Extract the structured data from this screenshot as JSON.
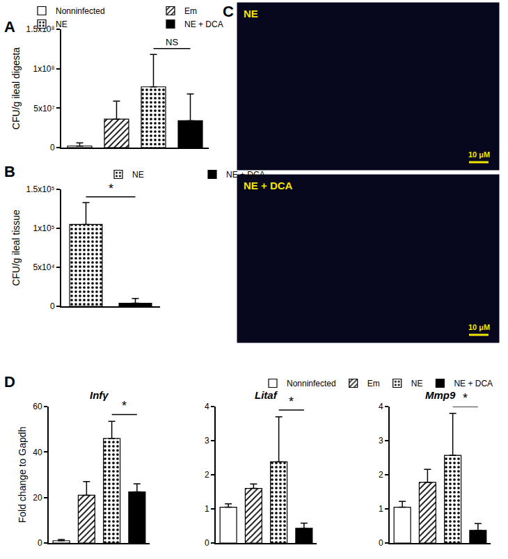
{
  "chart_data": [
    {
      "type": "bar",
      "y_label": "CFU/g ileal digesta",
      "categories": [
        "Nonninfected",
        "Em",
        "NE",
        "NE + DCA"
      ],
      "series": [
        {
          "name": "Nonninfected",
          "color": "#ffffff",
          "marker": "solid",
          "values": [
            2000000,
            null,
            null,
            null
          ],
          "errors": [
            4000000,
            null,
            null,
            null
          ]
        },
        {
          "name": "Em",
          "color": "#ffffff",
          "marker": "hatched",
          "values": [
            null,
            36000000,
            null,
            null
          ],
          "errors": [
            null,
            23000000,
            null,
            null
          ]
        },
        {
          "name": "NE",
          "color": "#ffffff",
          "marker": "dotted",
          "values": [
            null,
            null,
            77000000,
            null
          ],
          "errors": [
            null,
            null,
            41000000,
            null
          ]
        },
        {
          "name": "NE + DCA",
          "color": "#000000",
          "marker": "solid",
          "values": [
            null,
            null,
            null,
            34000000
          ],
          "errors": [
            null,
            null,
            null,
            34000000
          ]
        }
      ],
      "ylim": [
        0,
        150000000
      ],
      "yticks": [
        0,
        {
          "value": 50000000,
          "label": "5x10⁷"
        },
        {
          "value": 100000000,
          "label": "1x10⁸"
        },
        {
          "value": 150000000,
          "label": "1.5x10⁸"
        }
      ],
      "tick_labels": "y",
      "legend": "top",
      "annotations": [
        {
          "text": "NS",
          "from": "NE",
          "to": "NE + DCA"
        }
      ]
    },
    {
      "type": "bar",
      "y_label": "CFU/g ileal tissue",
      "categories": [
        "NE",
        "NE + DCA"
      ],
      "series": [
        {
          "name": "NE",
          "color": "#ffffff",
          "marker": "dotted",
          "values": [
            105000,
            null
          ],
          "errors": [
            28000,
            null
          ]
        },
        {
          "name": "NE + DCA",
          "color": "#000000",
          "marker": "solid",
          "values": [
            null,
            4000
          ],
          "errors": [
            null,
            6000
          ]
        }
      ],
      "ylim": [
        0,
        150000
      ],
      "yticks": [
        0,
        {
          "value": 50000,
          "label": "5x10⁴"
        },
        {
          "value": 100000,
          "label": "1x10⁵"
        },
        {
          "value": 150000,
          "label": "1.5x10⁵"
        }
      ],
      "tick_labels": "y",
      "legend": "top",
      "annotations": [
        {
          "text": "*",
          "from": "NE",
          "to": "NE + DCA"
        }
      ]
    },
    {
      "type": "bar",
      "title": "Infγ",
      "y_label": "Fold change to Gapdh",
      "categories": [
        "Nonninfected",
        "Em",
        "NE",
        "NE + DCA"
      ],
      "series": [
        {
          "name": "Nonninfected",
          "color": "#ffffff",
          "marker": "solid",
          "values": [
            1,
            null,
            null,
            null
          ],
          "errors": [
            0.5,
            null,
            null,
            null
          ]
        },
        {
          "name": "Em",
          "color": "#ffffff",
          "marker": "hatched",
          "values": [
            null,
            21,
            null,
            null
          ],
          "errors": [
            null,
            6,
            null,
            null
          ]
        },
        {
          "name": "NE",
          "color": "#ffffff",
          "marker": "dotted",
          "values": [
            null,
            null,
            46,
            null
          ],
          "errors": [
            null,
            null,
            7.5,
            null
          ]
        },
        {
          "name": "NE + DCA",
          "color": "#000000",
          "marker": "solid",
          "values": [
            null,
            null,
            null,
            22.5
          ],
          "errors": [
            null,
            null,
            null,
            3.5
          ]
        }
      ],
      "ylim": [
        0,
        60
      ],
      "yticks": [
        0,
        20,
        40,
        60
      ],
      "tick_labels": "y",
      "legend": "top",
      "annotations": [
        {
          "text": "*",
          "from": "NE",
          "to": "NE + DCA"
        }
      ]
    },
    {
      "type": "bar",
      "title": "Litaf",
      "categories": [
        "Nonninfected",
        "Em",
        "NE",
        "NE + DCA"
      ],
      "series": [
        {
          "name": "Nonninfected",
          "color": "#ffffff",
          "marker": "solid",
          "values": [
            1.05,
            null,
            null,
            null
          ],
          "errors": [
            0.1,
            null,
            null,
            null
          ]
        },
        {
          "name": "Em",
          "color": "#ffffff",
          "marker": "hatched",
          "values": [
            null,
            1.6,
            null,
            null
          ],
          "errors": [
            null,
            0.13,
            null,
            null
          ]
        },
        {
          "name": "NE",
          "color": "#ffffff",
          "marker": "dotted",
          "values": [
            null,
            null,
            2.38,
            null
          ],
          "errors": [
            null,
            null,
            1.32,
            null
          ]
        },
        {
          "name": "NE + DCA",
          "color": "#000000",
          "marker": "solid",
          "values": [
            null,
            null,
            null,
            0.43
          ],
          "errors": [
            null,
            null,
            null,
            0.15
          ]
        }
      ],
      "ylim": [
        0,
        4
      ],
      "yticks": [
        0,
        1,
        2,
        3,
        4
      ],
      "tick_labels": "y",
      "annotations": [
        {
          "text": "*",
          "from": "NE",
          "to": "NE + DCA"
        }
      ]
    },
    {
      "type": "bar",
      "title": "Mmp9",
      "categories": [
        "Nonninfected",
        "Em",
        "NE",
        "NE + DCA"
      ],
      "series": [
        {
          "name": "Nonninfected",
          "color": "#ffffff",
          "marker": "solid",
          "values": [
            1.05,
            null,
            null,
            null
          ],
          "errors": [
            0.17,
            null,
            null,
            null
          ]
        },
        {
          "name": "Em",
          "color": "#ffffff",
          "marker": "hatched",
          "values": [
            null,
            1.78,
            null,
            null
          ],
          "errors": [
            null,
            0.38,
            null,
            null
          ]
        },
        {
          "name": "NE",
          "color": "#ffffff",
          "marker": "dotted",
          "values": [
            null,
            null,
            2.57,
            null
          ],
          "errors": [
            null,
            null,
            1.23,
            null
          ]
        },
        {
          "name": "NE + DCA",
          "color": "#000000",
          "marker": "solid",
          "values": [
            null,
            null,
            null,
            0.37
          ],
          "errors": [
            null,
            null,
            null,
            0.2
          ]
        }
      ],
      "ylim": [
        0,
        4
      ],
      "yticks": [
        0,
        1,
        2,
        3,
        4
      ],
      "tick_labels": "y",
      "annotations": [
        {
          "text": "*",
          "from": "NE",
          "to": "NE + DCA"
        }
      ]
    }
  ],
  "panel_labels": [
    "A",
    "B",
    "C",
    "D"
  ],
  "image_panel": {
    "images": [
      {
        "label": "NE",
        "scale_bar": "10 μM"
      },
      {
        "label": "NE + DCA",
        "scale_bar": "10 μM"
      }
    ]
  }
}
